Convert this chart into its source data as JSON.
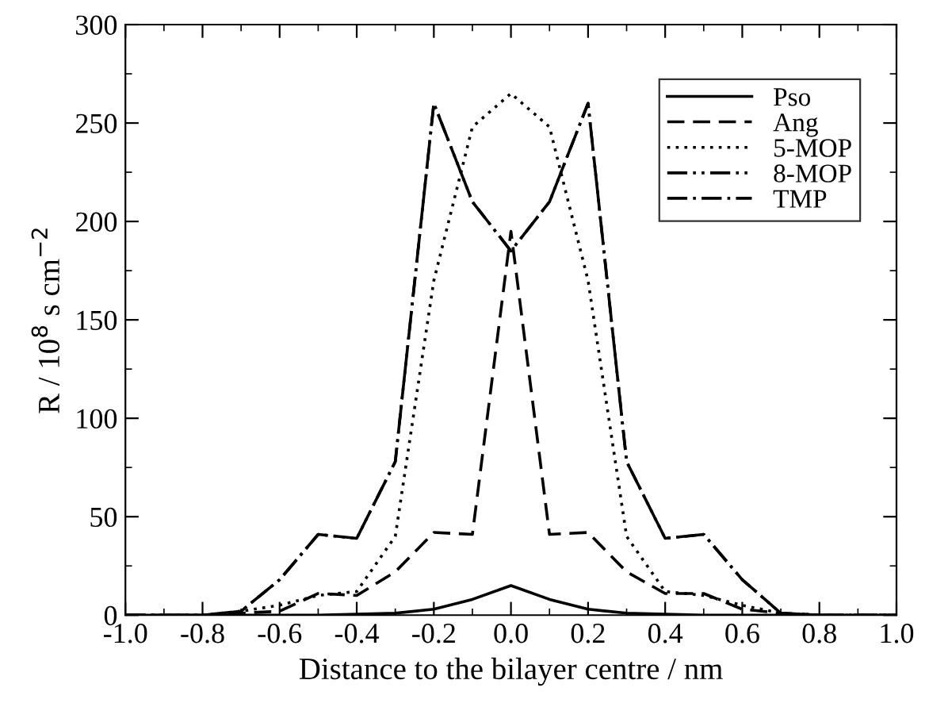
{
  "chart_data": {
    "type": "line",
    "xlabel": "Distance to the bilayer centre / nm",
    "ylabel": "R / 10$^{8}$ s cm$^{−2}$",
    "x": [
      -1.0,
      -0.9,
      -0.8,
      -0.7,
      -0.6,
      -0.5,
      -0.4,
      -0.3,
      -0.2,
      -0.1,
      0.0,
      0.1,
      0.2,
      0.3,
      0.4,
      0.5,
      0.6,
      0.7,
      0.8,
      0.9,
      1.0
    ],
    "series": [
      {
        "name": "Pso",
        "color": "#000000",
        "line_style": "solid",
        "values": [
          0,
          0,
          0,
          0,
          0,
          0,
          0.5,
          1,
          3,
          8,
          15,
          8,
          3,
          1,
          0.5,
          0,
          0,
          0,
          0,
          0,
          0
        ]
      },
      {
        "name": "Ang",
        "color": "#000000",
        "line_style": "dashed",
        "values": [
          0,
          0,
          0,
          1,
          2,
          11,
          10,
          22,
          42,
          41,
          195,
          41,
          42,
          22,
          11,
          11,
          3,
          1,
          0,
          0,
          0
        ]
      },
      {
        "name": "5-MOP",
        "color": "#000000",
        "line_style": "dotted",
        "values": [
          0,
          0,
          0,
          2,
          5,
          10,
          12,
          40,
          170,
          248,
          265,
          248,
          170,
          40,
          12,
          10,
          5,
          1,
          0,
          0,
          0
        ]
      },
      {
        "name": "8-MOP",
        "color": "#000000",
        "line_style": "dashdotdot",
        "values": [
          0,
          0,
          0,
          2,
          18,
          41,
          39,
          78,
          260,
          210,
          185,
          210,
          260,
          78,
          39,
          41,
          18,
          1,
          0,
          0,
          0
        ]
      },
      {
        "name": "TMP",
        "color": "#000000",
        "line_style": "dashdot",
        "values": [
          0,
          0,
          0,
          2,
          18,
          41,
          39,
          78,
          260,
          210,
          185,
          210,
          260,
          78,
          39,
          41,
          18,
          1,
          0,
          0,
          0
        ]
      }
    ],
    "xlim": [
      -1.0,
      1.0
    ],
    "ylim": [
      0,
      300
    ],
    "xticks": [
      {
        "value": -1.0,
        "label": "-1.0"
      },
      {
        "value": -0.8,
        "label": "-0.8"
      },
      {
        "value": -0.6,
        "label": "-0.6"
      },
      {
        "value": -0.4,
        "label": "-0.4"
      },
      {
        "value": -0.2,
        "label": "-0.2"
      },
      {
        "value": 0.0,
        "label": "0.0"
      },
      {
        "value": 0.2,
        "label": "0.2"
      },
      {
        "value": 0.4,
        "label": "0.4"
      },
      {
        "value": 0.6,
        "label": "0.6"
      },
      {
        "value": 0.8,
        "label": "0.8"
      },
      {
        "value": 1.0,
        "label": "1.0"
      }
    ],
    "yticks": [
      0,
      50,
      100,
      150,
      200,
      250,
      300
    ],
    "grid": false,
    "legend": "top right",
    "marker": "none"
  }
}
